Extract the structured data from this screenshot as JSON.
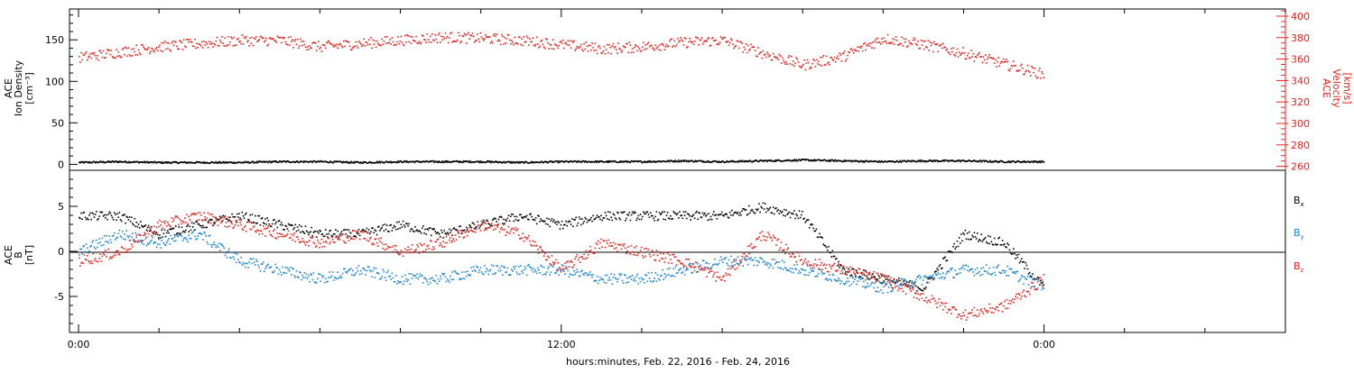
{
  "chart_data": [
    {
      "type": "scatter",
      "panel": "top",
      "ylabel_left": [
        "ACE",
        "Ion Density",
        "[cm⁻³]"
      ],
      "ylabel_right": [
        "ACE",
        "Velocity",
        "[km/s]"
      ],
      "ylim_left": [
        -5,
        185
      ],
      "yticks_left": [
        "0",
        "50",
        "100",
        "150"
      ],
      "yticks_left_values": [
        0,
        50,
        100,
        150
      ],
      "ylim_right": [
        258,
        405
      ],
      "yticks_right": [
        "400",
        "380",
        "360",
        "340",
        "320",
        "300",
        "280",
        "260"
      ],
      "yticks_right_values": [
        400,
        380,
        360,
        340,
        320,
        300,
        280,
        260
      ],
      "series": [
        {
          "name": "",
          "axis": "left",
          "color": "#000000",
          "x": [
            0,
            1,
            2,
            3,
            4,
            5,
            6,
            7,
            8,
            9,
            10,
            11,
            12,
            13,
            14,
            15,
            16,
            17,
            18,
            19,
            20,
            21,
            22,
            23,
            24
          ],
          "y": [
            3,
            4,
            3,
            3,
            3,
            4,
            4,
            3,
            4,
            4,
            4,
            3,
            4,
            4,
            4,
            5,
            4,
            5,
            6,
            5,
            4,
            5,
            5,
            4,
            4
          ]
        },
        {
          "name": "",
          "axis": "right",
          "color": "#e8231e",
          "x": [
            0,
            1,
            2,
            3,
            4,
            5,
            6,
            7,
            8,
            9,
            10,
            11,
            12,
            13,
            14,
            15,
            16,
            17,
            18,
            19,
            20,
            21,
            22,
            23,
            24
          ],
          "y": [
            362,
            367,
            372,
            375,
            378,
            378,
            372,
            375,
            378,
            381,
            380,
            378,
            374,
            370,
            372,
            376,
            378,
            366,
            355,
            363,
            380,
            374,
            366,
            356,
            346
          ]
        }
      ]
    },
    {
      "type": "scatter",
      "panel": "bottom",
      "ylabel": [
        "ACE",
        "B",
        "[nT]"
      ],
      "ylim": [
        -9,
        9
      ],
      "yticks": [
        "5",
        "0",
        "-5"
      ],
      "yticks_values": [
        5,
        0,
        -5
      ],
      "xlabel": "hours:minutes, Feb. 22, 2016 - Feb. 24, 2016",
      "xlim_hours": [
        0,
        30
      ],
      "xticks": [
        "0:00",
        "12:00",
        "0:00"
      ],
      "xticks_hours": [
        0,
        12,
        24
      ],
      "legend": [
        {
          "label": "B",
          "sub": "x",
          "color": "#000000"
        },
        {
          "label": "B",
          "sub": "y",
          "color": "#1c84d6"
        },
        {
          "label": "B",
          "sub": "z",
          "color": "#e8231e"
        }
      ],
      "series": [
        {
          "name": "Bx",
          "color": "#000000",
          "x": [
            0,
            1,
            2,
            3,
            4,
            5,
            6,
            7,
            8,
            9,
            10,
            11,
            12,
            13,
            14,
            15,
            16,
            17,
            18,
            19,
            20,
            21,
            22,
            23,
            24
          ],
          "y": [
            4,
            4,
            2,
            3,
            4,
            3,
            2,
            2,
            3,
            2,
            3,
            4,
            3,
            4,
            4,
            4,
            4,
            5,
            4,
            -2,
            -3,
            -4,
            2,
            1,
            -4
          ]
        },
        {
          "name": "By",
          "color": "#1c84d6",
          "x": [
            0,
            1,
            2,
            3,
            4,
            5,
            6,
            7,
            8,
            9,
            10,
            11,
            12,
            13,
            14,
            15,
            16,
            17,
            18,
            19,
            20,
            21,
            22,
            23,
            24
          ],
          "y": [
            0,
            2,
            1,
            2,
            -1,
            -2,
            -3,
            -2,
            -3,
            -3,
            -2,
            -2,
            -2,
            -3,
            -3,
            -2,
            -1,
            -1,
            -2,
            -3,
            -4,
            -3,
            -2,
            -2,
            -4
          ]
        },
        {
          "name": "Bz",
          "color": "#e8231e",
          "x": [
            0,
            1,
            2,
            3,
            4,
            5,
            6,
            7,
            8,
            9,
            10,
            11,
            12,
            13,
            14,
            15,
            16,
            17,
            18,
            19,
            20,
            21,
            22,
            23,
            24
          ],
          "y": [
            -1,
            0,
            3,
            4,
            3,
            2,
            1,
            2,
            0,
            1,
            3,
            2,
            -2,
            1,
            0,
            -1,
            -3,
            2,
            -1,
            -2,
            -3,
            -5,
            -7,
            -6,
            -3
          ]
        }
      ]
    }
  ]
}
